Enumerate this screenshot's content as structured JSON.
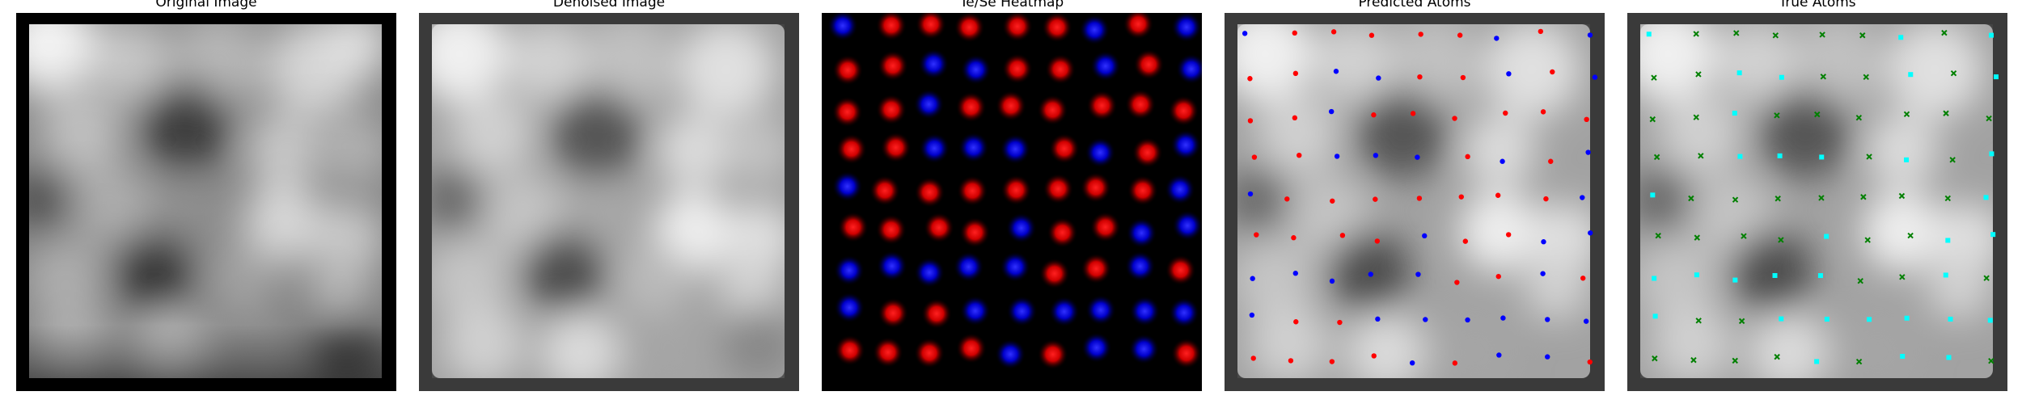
{
  "panels": [
    {
      "id": "original",
      "title": "Original Image"
    },
    {
      "id": "denoised",
      "title": "Denoised Image"
    },
    {
      "id": "heatmap",
      "title": "Te/Se Heatmap"
    },
    {
      "id": "predicted",
      "title": "Predicted Atoms"
    },
    {
      "id": "true",
      "title": "True Atoms"
    }
  ],
  "colors": {
    "te": "#e00000",
    "se": "#0000e0",
    "predicted_red": "#ff0000",
    "predicted_blue": "#0000ff",
    "true_green": "#008000",
    "true_cyan": "#00ffff"
  },
  "icons": {
    "true_green_marker": "x-mark-icon",
    "true_cyan_marker": "square-marker-icon"
  }
}
